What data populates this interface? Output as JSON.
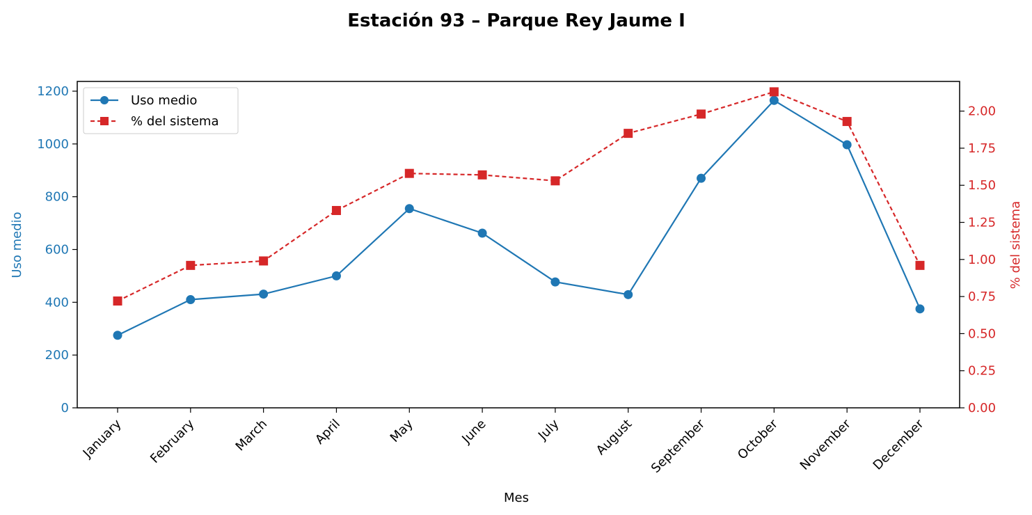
{
  "chart_data": {
    "type": "line",
    "title": "Estación 93 – Parque Rey Jaume I",
    "xlabel": "Mes",
    "ylabel": "Uso medio",
    "y2label": "% del sistema",
    "categories": [
      "January",
      "February",
      "March",
      "April",
      "May",
      "June",
      "July",
      "August",
      "September",
      "October",
      "November",
      "December"
    ],
    "ylim": [
      0,
      1200
    ],
    "y2lim": [
      0,
      2.2
    ],
    "yticks": [
      "0",
      "200",
      "400",
      "600",
      "800",
      "1000",
      "1200"
    ],
    "y2ticks": [
      "0.00",
      "0.25",
      "0.50",
      "0.75",
      "1.00",
      "1.25",
      "1.50",
      "1.75",
      "2.00"
    ],
    "grid": false,
    "legend_position": "upper-left",
    "series": [
      {
        "name": "Uso medio",
        "axis": "left",
        "color": "#1f77b4",
        "marker": "circle",
        "line_style": "solid",
        "values": [
          275,
          410,
          431,
          500,
          755,
          662,
          477,
          429,
          870,
          1165,
          997,
          375
        ]
      },
      {
        "name": "% del sistema",
        "axis": "right",
        "color": "#d62728",
        "marker": "square",
        "line_style": "dashed",
        "values": [
          0.72,
          0.96,
          0.99,
          1.33,
          1.58,
          1.57,
          1.53,
          1.85,
          1.98,
          2.13,
          1.93,
          0.96
        ]
      }
    ]
  }
}
